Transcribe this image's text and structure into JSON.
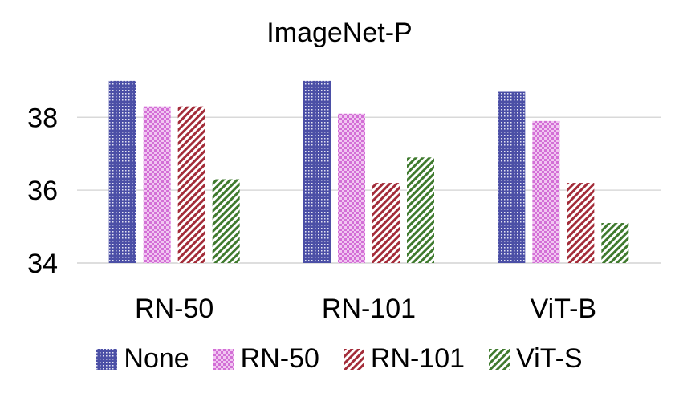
{
  "chart_data": {
    "type": "bar",
    "title": "ImageNet-P",
    "xlabel": "",
    "ylabel": "",
    "categories": [
      "RN-50",
      "RN-101",
      "ViT-B"
    ],
    "series": [
      {
        "name": "None",
        "values": [
          39.0,
          39.0,
          38.7
        ],
        "color": "#4b4fa6",
        "pattern": "dots"
      },
      {
        "name": "RN-50",
        "values": [
          38.3,
          38.1,
          37.9
        ],
        "color": "#d36fd6",
        "pattern": "checker"
      },
      {
        "name": "RN-101",
        "values": [
          38.3,
          36.2,
          36.2
        ],
        "color": "#a32c39",
        "pattern": "diagonal"
      },
      {
        "name": "ViT-S",
        "values": [
          36.3,
          36.9,
          35.1
        ],
        "color": "#3f7a2e",
        "pattern": "diagonal"
      }
    ],
    "ylim": [
      34,
      39.9
    ],
    "yticks": [
      34,
      36,
      38
    ],
    "grid": true,
    "legend": "bottom"
  }
}
